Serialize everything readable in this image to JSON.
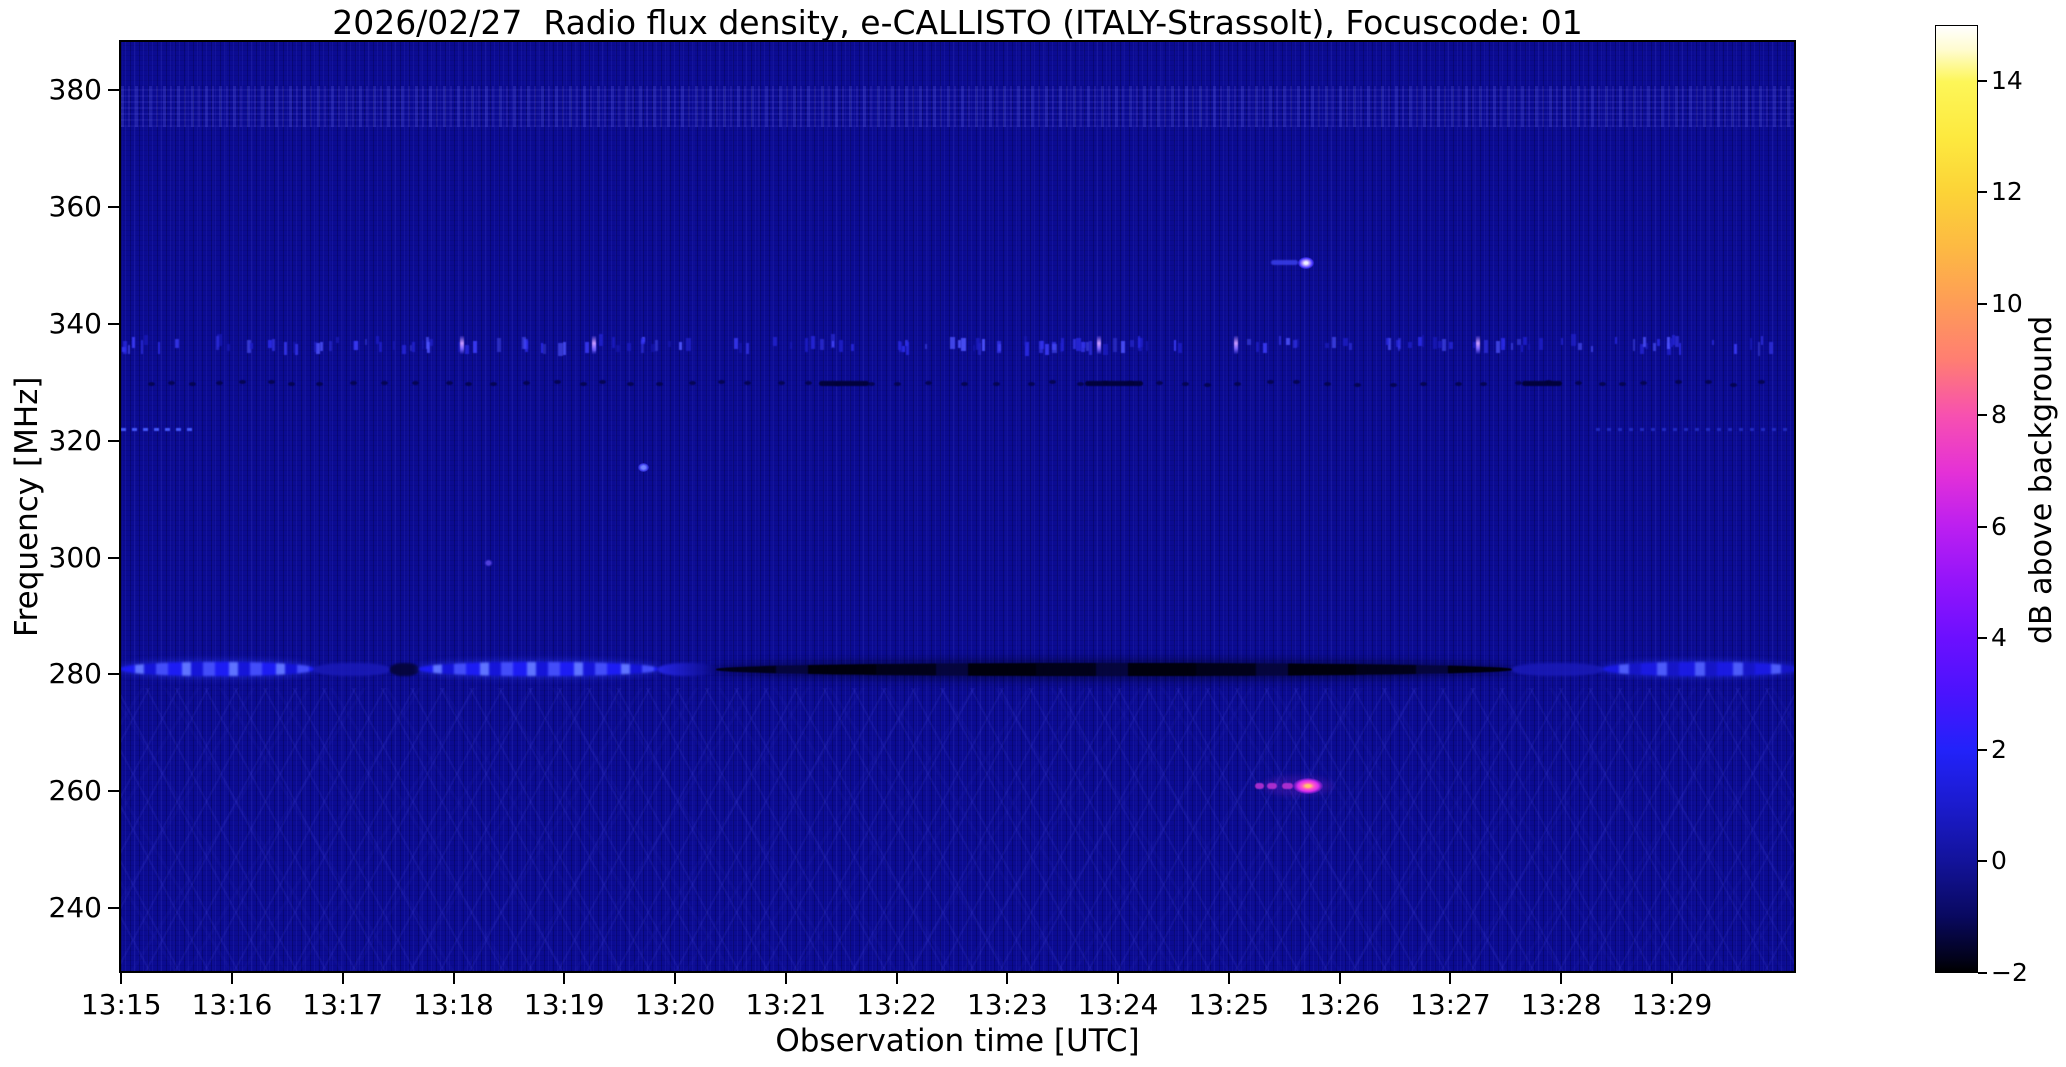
{
  "title": "2026/02/27  Radio flux density, e-CALLISTO (ITALY-Strassolt), Focuscode: 01",
  "chart_data": {
    "type": "heatmap",
    "title": "2026/02/27  Radio flux density, e-CALLISTO (ITALY-Strassolt), Focuscode: 01",
    "xlabel": "Observation time [UTC]",
    "ylabel": "Frequency [MHz]",
    "x_tick_labels": [
      "13:15",
      "13:16",
      "13:17",
      "13:18",
      "13:19",
      "13:20",
      "13:21",
      "13:22",
      "13:23",
      "13:24",
      "13:25",
      "13:26",
      "13:27",
      "13:28",
      "13:29"
    ],
    "x_tick_minutes": [
      0,
      1,
      2,
      3,
      4,
      5,
      6,
      7,
      8,
      9,
      10,
      11,
      12,
      13,
      14
    ],
    "x_range_minutes": [
      -0.02,
      15.12
    ],
    "y_tick_values": [
      380,
      360,
      340,
      320,
      300,
      280,
      260,
      240
    ],
    "y_range_mhz": [
      228.9,
      388.6
    ],
    "grid": false,
    "background_level_db": 0.8,
    "background_color": "#0b0b92",
    "colorbar": {
      "label": "dB above background",
      "tick_values": [
        14,
        12,
        10,
        8,
        6,
        4,
        2,
        0,
        -2
      ],
      "tick_labels": [
        "14",
        "12",
        "10",
        "8",
        "6",
        "4",
        "2",
        "0",
        "−2"
      ],
      "range_db": [
        -2,
        15
      ],
      "colormap": "gnuplot2 (black-blue-violet-magenta-orange-yellow-white)"
    },
    "features": [
      {
        "kind": "zone",
        "name": "high-band-mottle",
        "f0": 381,
        "f1": 374,
        "css": "zone-mottle"
      },
      {
        "kind": "zone",
        "name": "low-band-crisscross",
        "f0": 278,
        "f1": 228.9,
        "css": "zone-criss"
      },
      {
        "kind": "seg",
        "name": "carrier-281MHz-bright-a",
        "f": 281.2,
        "h_mhz": 2.4,
        "t0": -0.02,
        "t1": 1.72,
        "css": "seg-blob-bright",
        "db": 3
      },
      {
        "kind": "seg",
        "name": "carrier-281MHz-dim-a",
        "f": 281.2,
        "h_mhz": 2.1,
        "t0": 1.72,
        "t1": 2.41,
        "css": "seg-dim",
        "db": 1.5
      },
      {
        "kind": "seg",
        "name": "carrier-281MHz-dark-dip",
        "f": 281.2,
        "h_mhz": 2.1,
        "t0": 2.41,
        "t1": 2.67,
        "css": "seg-darkdip",
        "db": -0.5
      },
      {
        "kind": "seg",
        "name": "carrier-281MHz-bright-b",
        "f": 281.2,
        "h_mhz": 2.4,
        "t0": 2.67,
        "t1": 4.83,
        "css": "seg-blob-bright",
        "db": 3
      },
      {
        "kind": "seg",
        "name": "carrier-281MHz-fade",
        "f": 281.2,
        "h_mhz": 2.2,
        "t0": 4.83,
        "t1": 5.35,
        "css": "seg-fade",
        "db": 2
      },
      {
        "kind": "seg",
        "name": "carrier-281MHz-dark-long",
        "f": 281.2,
        "h_mhz": 2.3,
        "t0": 5.35,
        "t1": 12.54,
        "css": "seg-dark",
        "db": -1.5
      },
      {
        "kind": "seg",
        "name": "carrier-281MHz-dim-b",
        "f": 281.2,
        "h_mhz": 2.1,
        "t0": 12.54,
        "t1": 13.36,
        "css": "seg-dim",
        "db": 1.2
      },
      {
        "kind": "seg",
        "name": "carrier-281MHz-bright-c",
        "f": 281.2,
        "h_mhz": 2.4,
        "t0": 13.36,
        "t1": 15.12,
        "css": "seg-blob-bright2",
        "db": 2.8
      },
      {
        "kind": "streaks",
        "name": "rfi-337MHz-speckle-band",
        "f": 336.8,
        "t0": -0.02,
        "t1": 15.05,
        "count": 175,
        "seed": 7,
        "palette": [
          "#1e1ec8",
          "#2c2ce8",
          "#3c3cf8",
          "#5055ff"
        ]
      },
      {
        "kind": "brightstreaks",
        "name": "rfi-337MHz-bright-bursts",
        "f": 336.8,
        "ts": [
          3.06,
          4.25,
          8.81,
          10.05,
          12.23
        ]
      },
      {
        "kind": "dashrow",
        "name": "absorption-330MHz-dot-row",
        "f": 330.2,
        "t0": 0.25,
        "t1": 14.9,
        "step": 0.252,
        "seed": 3
      },
      {
        "kind": "darkdash",
        "name": "absorption-330MHz-dashes",
        "f": 330.2,
        "spans": [
          [
            6.28,
            6.73
          ],
          [
            8.68,
            9.21
          ],
          [
            12.63,
            12.99
          ]
        ]
      },
      {
        "kind": "dotline",
        "name": "line-322MHz-left",
        "f": 322.3,
        "t0": -0.02,
        "t1": 0.65,
        "css": "dotline-bright"
      },
      {
        "kind": "dotline",
        "name": "line-322MHz-right",
        "f": 322.3,
        "t0": 13.3,
        "t1": 15.05,
        "css": "dotline-faint"
      },
      {
        "kind": "bluedash",
        "name": "point-351MHz-tail",
        "f": 350.8,
        "spans": [
          [
            10.36,
            10.61
          ]
        ]
      },
      {
        "kind": "dot",
        "name": "point-351MHz",
        "f": 350.8,
        "t": 10.68,
        "css": "dot-350",
        "db": 5
      },
      {
        "kind": "dot",
        "name": "point-316MHz",
        "f": 315.8,
        "t": 4.7,
        "css": "dot-316",
        "db": 3
      },
      {
        "kind": "dot",
        "name": "point-299MHz",
        "f": 299.4,
        "t": 3.3,
        "css": "dot-299",
        "db": 2.5
      },
      {
        "kind": "burst",
        "name": "burst-261MHz",
        "f": 261.2,
        "t": 10.7,
        "db": 9,
        "dashes": [
          [
            10.22,
            10.3
          ],
          [
            10.33,
            10.42
          ],
          [
            10.46,
            10.56
          ]
        ]
      }
    ]
  }
}
